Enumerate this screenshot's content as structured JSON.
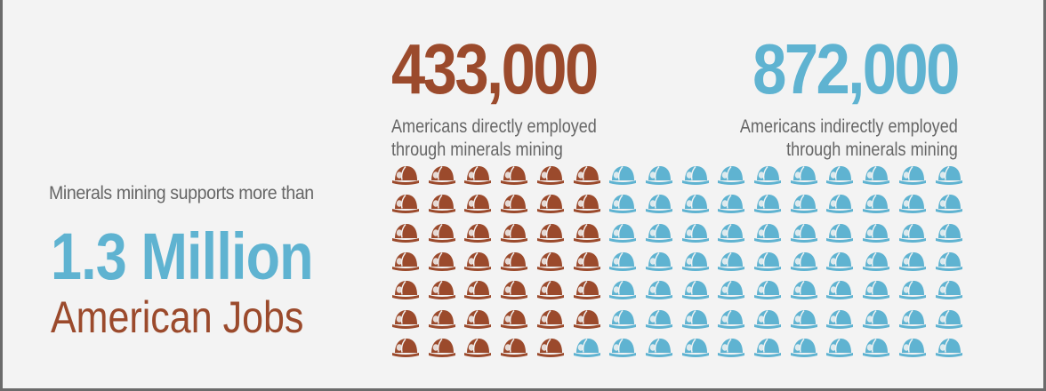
{
  "intro_text": "Minerals mining  supports more than",
  "total_jobs": "1.3 Million",
  "total_jobs_label": "American Jobs",
  "direct": {
    "value": "433,000",
    "line1": "Americans directly employed",
    "line2": "through minerals mining",
    "color": "#9b4a2c",
    "icon": "miner-helmet-icon"
  },
  "indirect": {
    "value": "872,000",
    "line1": "Americans indirectly employed",
    "line2": "through minerals mining",
    "color": "#5fb3d1",
    "icon": "miner-helmet-icon"
  },
  "helmet_grid": {
    "rows": 7,
    "columns": 16,
    "direct_per_row": [
      6,
      6,
      6,
      6,
      6,
      6,
      5
    ]
  }
}
